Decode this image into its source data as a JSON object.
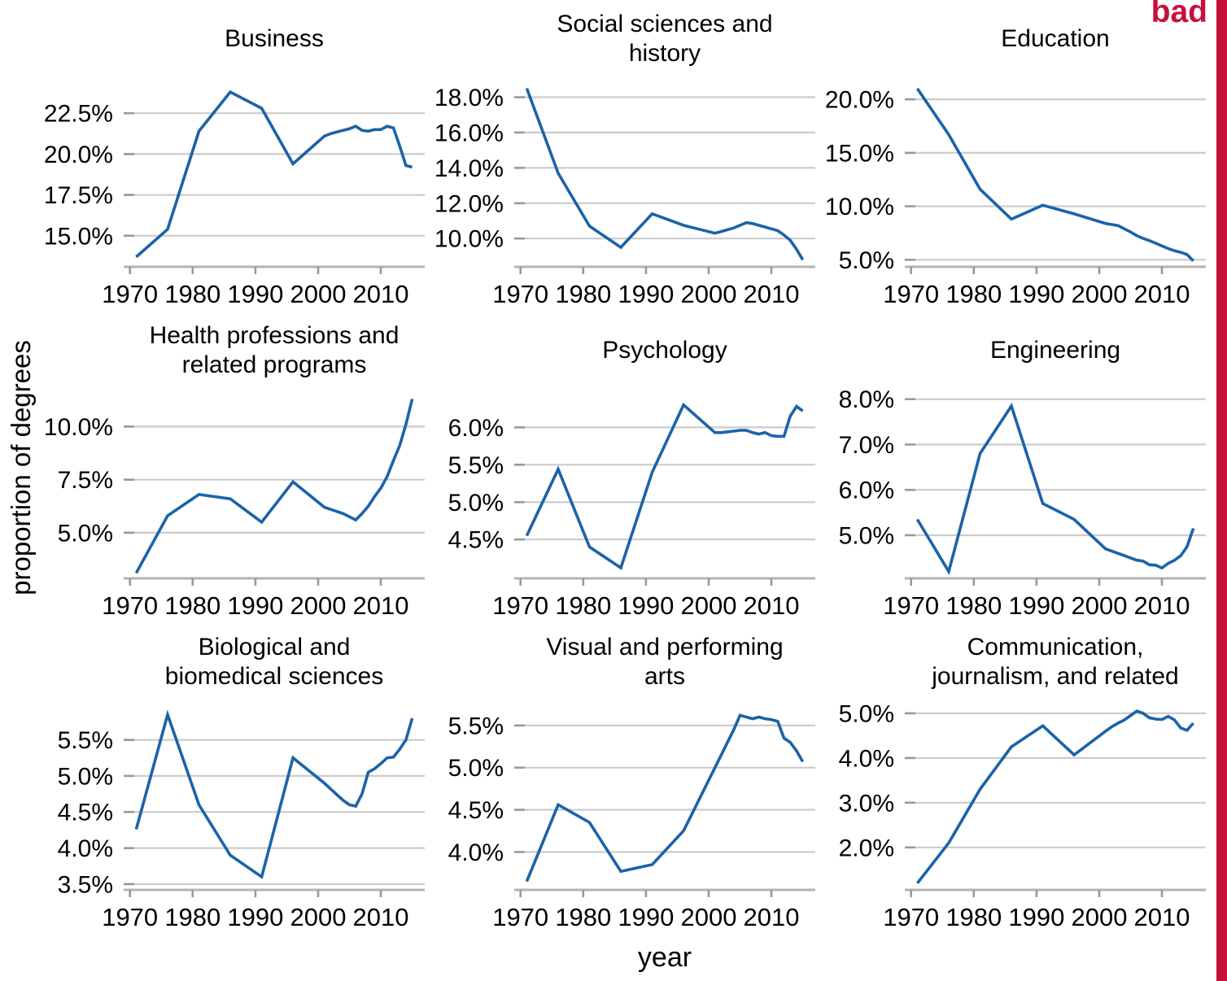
{
  "figure": {
    "stamp": "bad",
    "shared_ylabel": "proportion of degrees",
    "shared_xlabel": "year",
    "arrangement": "3x3 small multiples"
  },
  "colors": {
    "line": "#1B63A8",
    "grid": "#CCCCCC",
    "axis": "#B3B3B3",
    "tick": "#999999",
    "stamp_red": "#C6103C",
    "text": "#000000"
  },
  "chart_data": [
    {
      "type": "line",
      "title": "Business",
      "xlabel": "year",
      "ylabel": "proportion of degrees",
      "x": [
        1971,
        1976,
        1981,
        1986,
        1991,
        1996,
        2001,
        2002,
        2003,
        2004,
        2005,
        2006,
        2007,
        2008,
        2009,
        2010,
        2011,
        2012,
        2013,
        2014,
        2015
      ],
      "y": [
        13.7,
        15.4,
        21.4,
        23.8,
        22.8,
        19.4,
        21.1,
        21.25,
        21.35,
        21.45,
        21.55,
        21.7,
        21.45,
        21.4,
        21.5,
        21.5,
        21.7,
        21.6,
        20.5,
        19.3,
        19.2
      ],
      "xlim": [
        1969,
        2017
      ],
      "ylim": [
        13.1,
        24.4
      ],
      "xticks": [
        1970,
        1980,
        1990,
        2000,
        2010
      ],
      "xtick_labels": [
        "1970",
        "1980",
        "1990",
        "2000",
        "2010"
      ],
      "yticks": [
        15,
        17.5,
        20,
        22.5
      ],
      "ytick_labels": [
        "15.0%",
        "17.5%",
        "20.0%",
        "22.5%"
      ],
      "grid": "horizontal",
      "legend": "none"
    },
    {
      "type": "line",
      "title": "Social sciences and\nhistory",
      "xlabel": "year",
      "ylabel": "proportion of degrees",
      "x": [
        1971,
        1976,
        1981,
        1986,
        1991,
        1996,
        2001,
        2002,
        2003,
        2004,
        2005,
        2006,
        2007,
        2008,
        2009,
        2010,
        2011,
        2012,
        2013,
        2014,
        2015
      ],
      "y": [
        18.5,
        13.7,
        10.7,
        9.5,
        11.4,
        10.75,
        10.3,
        10.4,
        10.5,
        10.6,
        10.75,
        10.9,
        10.85,
        10.75,
        10.65,
        10.55,
        10.45,
        10.2,
        9.9,
        9.4,
        8.8
      ],
      "xlim": [
        1969,
        2017
      ],
      "ylim": [
        8.4,
        18.85
      ],
      "xticks": [
        1970,
        1980,
        1990,
        2000,
        2010
      ],
      "xtick_labels": [
        "1970",
        "1980",
        "1990",
        "2000",
        "2010"
      ],
      "yticks": [
        10,
        12,
        14,
        16,
        18
      ],
      "ytick_labels": [
        "10.0%",
        "12.0%",
        "14.0%",
        "16.0%",
        "18.0%"
      ],
      "grid": "horizontal",
      "legend": "none"
    },
    {
      "type": "line",
      "title": "Education",
      "xlabel": "year",
      "ylabel": "proportion of degrees",
      "x": [
        1971,
        1976,
        1981,
        1986,
        1991,
        1996,
        2001,
        2002,
        2003,
        2004,
        2005,
        2006,
        2007,
        2008,
        2009,
        2010,
        2011,
        2012,
        2013,
        2014,
        2015
      ],
      "y": [
        21.0,
        16.7,
        11.6,
        8.8,
        10.1,
        9.3,
        8.4,
        8.3,
        8.2,
        7.9,
        7.6,
        7.25,
        7.0,
        6.8,
        6.55,
        6.3,
        6.05,
        5.85,
        5.7,
        5.5,
        4.9
      ],
      "xlim": [
        1969,
        2017
      ],
      "ylim": [
        4.35,
        21.6
      ],
      "xticks": [
        1970,
        1980,
        1990,
        2000,
        2010
      ],
      "xtick_labels": [
        "1970",
        "1980",
        "1990",
        "2000",
        "2010"
      ],
      "yticks": [
        5,
        10,
        15,
        20
      ],
      "ytick_labels": [
        "5.0%",
        "10.0%",
        "15.0%",
        "20.0%"
      ],
      "grid": "horizontal",
      "legend": "none"
    },
    {
      "type": "line",
      "title": "Health professions and\nrelated programs",
      "xlabel": "year",
      "ylabel": "proportion of degrees",
      "x": [
        1971,
        1976,
        1981,
        1986,
        1991,
        1996,
        2001,
        2002,
        2003,
        2004,
        2005,
        2006,
        2007,
        2008,
        2009,
        2010,
        2011,
        2012,
        2013,
        2014,
        2015
      ],
      "y": [
        3.1,
        5.8,
        6.8,
        6.6,
        5.5,
        7.4,
        6.2,
        6.1,
        6.0,
        5.9,
        5.75,
        5.6,
        5.9,
        6.25,
        6.7,
        7.1,
        7.65,
        8.4,
        9.1,
        10.1,
        11.3
      ],
      "xlim": [
        1969,
        2017
      ],
      "ylim": [
        2.85,
        11.55
      ],
      "xticks": [
        1970,
        1980,
        1990,
        2000,
        2010
      ],
      "xtick_labels": [
        "1970",
        "1980",
        "1990",
        "2000",
        "2010"
      ],
      "yticks": [
        5,
        7.5,
        10
      ],
      "ytick_labels": [
        "5.0%",
        "7.5%",
        "10.0%"
      ],
      "grid": "horizontal",
      "legend": "none"
    },
    {
      "type": "line",
      "title": "Psychology",
      "xlabel": "year",
      "ylabel": "proportion of degrees",
      "x": [
        1971,
        1976,
        1981,
        1986,
        1991,
        1996,
        2001,
        2002,
        2003,
        2004,
        2005,
        2006,
        2007,
        2008,
        2009,
        2010,
        2011,
        2012,
        2013,
        2014,
        2015
      ],
      "y": [
        4.55,
        5.44,
        4.4,
        4.12,
        5.4,
        6.3,
        5.93,
        5.93,
        5.94,
        5.95,
        5.96,
        5.96,
        5.93,
        5.91,
        5.93,
        5.89,
        5.88,
        5.88,
        6.15,
        6.28,
        6.22
      ],
      "xlim": [
        1969,
        2017
      ],
      "ylim": [
        3.98,
        6.45
      ],
      "xticks": [
        1970,
        1980,
        1990,
        2000,
        2010
      ],
      "xtick_labels": [
        "1970",
        "1980",
        "1990",
        "2000",
        "2010"
      ],
      "yticks": [
        4.5,
        5,
        5.5,
        6
      ],
      "ytick_labels": [
        "4.5%",
        "5.0%",
        "5.5%",
        "6.0%"
      ],
      "grid": "horizontal",
      "legend": "none"
    },
    {
      "type": "line",
      "title": "Engineering",
      "xlabel": "year",
      "ylabel": "proportion of degrees",
      "x": [
        1971,
        1976,
        1981,
        1986,
        1991,
        1996,
        2001,
        2002,
        2003,
        2004,
        2005,
        2006,
        2007,
        2008,
        2009,
        2010,
        2011,
        2012,
        2013,
        2014,
        2015
      ],
      "y": [
        5.35,
        4.2,
        6.8,
        7.85,
        5.7,
        5.35,
        4.7,
        4.65,
        4.6,
        4.55,
        4.5,
        4.45,
        4.43,
        4.35,
        4.34,
        4.28,
        4.38,
        4.45,
        4.55,
        4.75,
        5.15
      ],
      "xlim": [
        1969,
        2017
      ],
      "ylim": [
        4.05,
        8.12
      ],
      "xticks": [
        1970,
        1980,
        1990,
        2000,
        2010
      ],
      "xtick_labels": [
        "1970",
        "1980",
        "1990",
        "2000",
        "2010"
      ],
      "yticks": [
        5,
        6,
        7,
        8
      ],
      "ytick_labels": [
        "5.0%",
        "6.0%",
        "7.0%",
        "8.0%"
      ],
      "grid": "horizontal",
      "legend": "none"
    },
    {
      "type": "line",
      "title": "Biological and\nbiomedical sciences",
      "xlabel": "year",
      "ylabel": "proportion of degrees",
      "x": [
        1971,
        1976,
        1981,
        1986,
        1991,
        1996,
        2001,
        2002,
        2003,
        2004,
        2005,
        2006,
        2007,
        2008,
        2009,
        2010,
        2011,
        2012,
        2013,
        2014,
        2015
      ],
      "y": [
        4.26,
        5.85,
        4.6,
        3.9,
        3.6,
        5.25,
        4.9,
        4.82,
        4.74,
        4.66,
        4.6,
        4.58,
        4.75,
        5.05,
        5.1,
        5.17,
        5.25,
        5.26,
        5.37,
        5.5,
        5.8
      ],
      "xlim": [
        1969,
        2017
      ],
      "ylim": [
        3.42,
        5.98
      ],
      "xticks": [
        1970,
        1980,
        1990,
        2000,
        2010
      ],
      "xtick_labels": [
        "1970",
        "1980",
        "1990",
        "2000",
        "2010"
      ],
      "yticks": [
        3.5,
        4,
        4.5,
        5,
        5.5
      ],
      "ytick_labels": [
        "3.5%",
        "4.0%",
        "4.5%",
        "5.0%",
        "5.5%"
      ],
      "grid": "horizontal",
      "legend": "none"
    },
    {
      "type": "line",
      "title": "Visual and performing\narts",
      "xlabel": "year",
      "ylabel": "proportion of degrees",
      "x": [
        1971,
        1976,
        1981,
        1986,
        1991,
        1996,
        2001,
        2002,
        2003,
        2004,
        2005,
        2006,
        2007,
        2008,
        2009,
        2010,
        2011,
        2012,
        2013,
        2014,
        2015
      ],
      "y": [
        3.65,
        4.56,
        4.35,
        3.77,
        3.85,
        4.25,
        5.0,
        5.15,
        5.3,
        5.45,
        5.62,
        5.6,
        5.58,
        5.6,
        5.58,
        5.57,
        5.55,
        5.35,
        5.3,
        5.2,
        5.07
      ],
      "xlim": [
        1969,
        2017
      ],
      "ylim": [
        3.55,
        5.74
      ],
      "xticks": [
        1970,
        1980,
        1990,
        2000,
        2010
      ],
      "xtick_labels": [
        "1970",
        "1980",
        "1990",
        "2000",
        "2010"
      ],
      "yticks": [
        4,
        4.5,
        5,
        5.5
      ],
      "ytick_labels": [
        "4.0%",
        "4.5%",
        "5.0%",
        "5.5%"
      ],
      "grid": "horizontal",
      "legend": "none"
    },
    {
      "type": "line",
      "title": "Communication,\njournalism, and related",
      "xlabel": "year",
      "ylabel": "proportion of degrees",
      "x": [
        1971,
        1976,
        1981,
        1986,
        1991,
        1996,
        2001,
        2002,
        2003,
        2004,
        2005,
        2006,
        2007,
        2008,
        2009,
        2010,
        2011,
        2012,
        2013,
        2014,
        2015
      ],
      "y": [
        1.2,
        2.1,
        3.3,
        4.25,
        4.72,
        4.07,
        4.6,
        4.7,
        4.78,
        4.85,
        4.95,
        5.05,
        5.0,
        4.9,
        4.87,
        4.86,
        4.93,
        4.85,
        4.67,
        4.62,
        4.78
      ],
      "xlim": [
        1969,
        2017
      ],
      "ylim": [
        1.05,
        5.18
      ],
      "xticks": [
        1970,
        1980,
        1990,
        2000,
        2010
      ],
      "xtick_labels": [
        "1970",
        "1980",
        "1990",
        "2000",
        "2010"
      ],
      "yticks": [
        2,
        3,
        4,
        5
      ],
      "ytick_labels": [
        "2.0%",
        "3.0%",
        "4.0%",
        "5.0%"
      ],
      "grid": "horizontal",
      "legend": "none"
    }
  ]
}
